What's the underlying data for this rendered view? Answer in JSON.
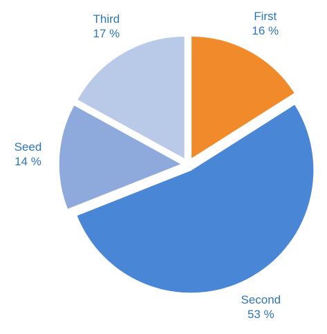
{
  "chart_data": {
    "type": "pie",
    "categories": [
      "First",
      "Second",
      "Seed",
      "Third"
    ],
    "values": [
      16,
      53,
      14,
      17
    ],
    "value_labels": [
      "16 %",
      "53 %",
      "14 %",
      "17 %"
    ],
    "colors": [
      "#f08a2a",
      "#4a86d6",
      "#8eaadc",
      "#b9c9e8"
    ]
  }
}
